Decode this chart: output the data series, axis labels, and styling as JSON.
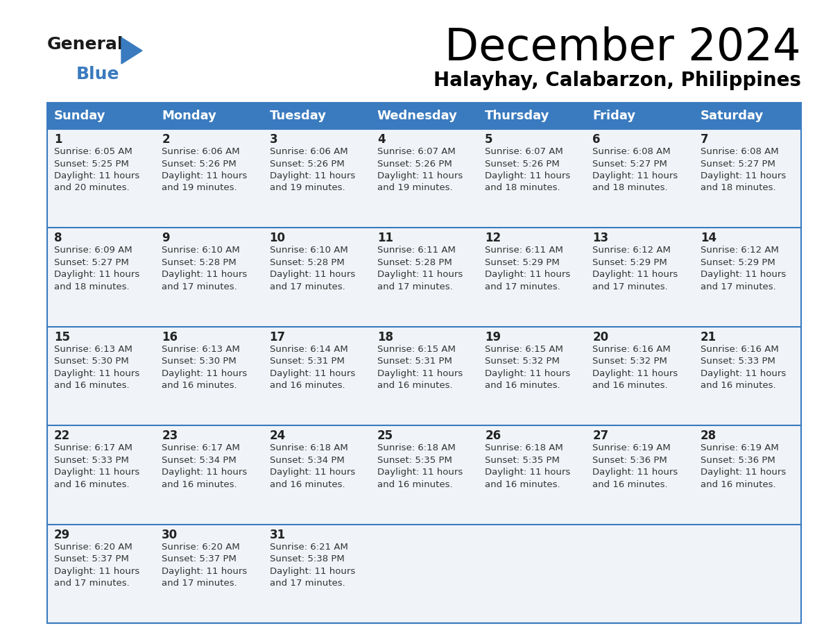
{
  "title": "December 2024",
  "subtitle": "Halayhay, Calabarzon, Philippines",
  "days_of_week": [
    "Sunday",
    "Monday",
    "Tuesday",
    "Wednesday",
    "Thursday",
    "Friday",
    "Saturday"
  ],
  "header_bg": "#3a7bbf",
  "header_text": "#ffffff",
  "row_bg": "#f0f4f8",
  "cell_border_color": "#3a7bbf",
  "day_num_color": "#222222",
  "cell_text_color": "#333333",
  "calendar": [
    [
      {
        "day": 1,
        "sunrise": "6:05 AM",
        "sunset": "5:25 PM",
        "daylight_h": "11 hours",
        "daylight_m": "and 20 minutes."
      },
      {
        "day": 2,
        "sunrise": "6:06 AM",
        "sunset": "5:26 PM",
        "daylight_h": "11 hours",
        "daylight_m": "and 19 minutes."
      },
      {
        "day": 3,
        "sunrise": "6:06 AM",
        "sunset": "5:26 PM",
        "daylight_h": "11 hours",
        "daylight_m": "and 19 minutes."
      },
      {
        "day": 4,
        "sunrise": "6:07 AM",
        "sunset": "5:26 PM",
        "daylight_h": "11 hours",
        "daylight_m": "and 19 minutes."
      },
      {
        "day": 5,
        "sunrise": "6:07 AM",
        "sunset": "5:26 PM",
        "daylight_h": "11 hours",
        "daylight_m": "and 18 minutes."
      },
      {
        "day": 6,
        "sunrise": "6:08 AM",
        "sunset": "5:27 PM",
        "daylight_h": "11 hours",
        "daylight_m": "and 18 minutes."
      },
      {
        "day": 7,
        "sunrise": "6:08 AM",
        "sunset": "5:27 PM",
        "daylight_h": "11 hours",
        "daylight_m": "and 18 minutes."
      }
    ],
    [
      {
        "day": 8,
        "sunrise": "6:09 AM",
        "sunset": "5:27 PM",
        "daylight_h": "11 hours",
        "daylight_m": "and 18 minutes."
      },
      {
        "day": 9,
        "sunrise": "6:10 AM",
        "sunset": "5:28 PM",
        "daylight_h": "11 hours",
        "daylight_m": "and 17 minutes."
      },
      {
        "day": 10,
        "sunrise": "6:10 AM",
        "sunset": "5:28 PM",
        "daylight_h": "11 hours",
        "daylight_m": "and 17 minutes."
      },
      {
        "day": 11,
        "sunrise": "6:11 AM",
        "sunset": "5:28 PM",
        "daylight_h": "11 hours",
        "daylight_m": "and 17 minutes."
      },
      {
        "day": 12,
        "sunrise": "6:11 AM",
        "sunset": "5:29 PM",
        "daylight_h": "11 hours",
        "daylight_m": "and 17 minutes."
      },
      {
        "day": 13,
        "sunrise": "6:12 AM",
        "sunset": "5:29 PM",
        "daylight_h": "11 hours",
        "daylight_m": "and 17 minutes."
      },
      {
        "day": 14,
        "sunrise": "6:12 AM",
        "sunset": "5:29 PM",
        "daylight_h": "11 hours",
        "daylight_m": "and 17 minutes."
      }
    ],
    [
      {
        "day": 15,
        "sunrise": "6:13 AM",
        "sunset": "5:30 PM",
        "daylight_h": "11 hours",
        "daylight_m": "and 16 minutes."
      },
      {
        "day": 16,
        "sunrise": "6:13 AM",
        "sunset": "5:30 PM",
        "daylight_h": "11 hours",
        "daylight_m": "and 16 minutes."
      },
      {
        "day": 17,
        "sunrise": "6:14 AM",
        "sunset": "5:31 PM",
        "daylight_h": "11 hours",
        "daylight_m": "and 16 minutes."
      },
      {
        "day": 18,
        "sunrise": "6:15 AM",
        "sunset": "5:31 PM",
        "daylight_h": "11 hours",
        "daylight_m": "and 16 minutes."
      },
      {
        "day": 19,
        "sunrise": "6:15 AM",
        "sunset": "5:32 PM",
        "daylight_h": "11 hours",
        "daylight_m": "and 16 minutes."
      },
      {
        "day": 20,
        "sunrise": "6:16 AM",
        "sunset": "5:32 PM",
        "daylight_h": "11 hours",
        "daylight_m": "and 16 minutes."
      },
      {
        "day": 21,
        "sunrise": "6:16 AM",
        "sunset": "5:33 PM",
        "daylight_h": "11 hours",
        "daylight_m": "and 16 minutes."
      }
    ],
    [
      {
        "day": 22,
        "sunrise": "6:17 AM",
        "sunset": "5:33 PM",
        "daylight_h": "11 hours",
        "daylight_m": "and 16 minutes."
      },
      {
        "day": 23,
        "sunrise": "6:17 AM",
        "sunset": "5:34 PM",
        "daylight_h": "11 hours",
        "daylight_m": "and 16 minutes."
      },
      {
        "day": 24,
        "sunrise": "6:18 AM",
        "sunset": "5:34 PM",
        "daylight_h": "11 hours",
        "daylight_m": "and 16 minutes."
      },
      {
        "day": 25,
        "sunrise": "6:18 AM",
        "sunset": "5:35 PM",
        "daylight_h": "11 hours",
        "daylight_m": "and 16 minutes."
      },
      {
        "day": 26,
        "sunrise": "6:18 AM",
        "sunset": "5:35 PM",
        "daylight_h": "11 hours",
        "daylight_m": "and 16 minutes."
      },
      {
        "day": 27,
        "sunrise": "6:19 AM",
        "sunset": "5:36 PM",
        "daylight_h": "11 hours",
        "daylight_m": "and 16 minutes."
      },
      {
        "day": 28,
        "sunrise": "6:19 AM",
        "sunset": "5:36 PM",
        "daylight_h": "11 hours",
        "daylight_m": "and 16 minutes."
      }
    ],
    [
      {
        "day": 29,
        "sunrise": "6:20 AM",
        "sunset": "5:37 PM",
        "daylight_h": "11 hours",
        "daylight_m": "and 17 minutes."
      },
      {
        "day": 30,
        "sunrise": "6:20 AM",
        "sunset": "5:37 PM",
        "daylight_h": "11 hours",
        "daylight_m": "and 17 minutes."
      },
      {
        "day": 31,
        "sunrise": "6:21 AM",
        "sunset": "5:38 PM",
        "daylight_h": "11 hours",
        "daylight_m": "and 17 minutes."
      },
      null,
      null,
      null,
      null
    ]
  ],
  "logo_general_color": "#1a1a1a",
  "logo_blue_color": "#3a7bbf",
  "logo_triangle_color": "#3a7bbf"
}
